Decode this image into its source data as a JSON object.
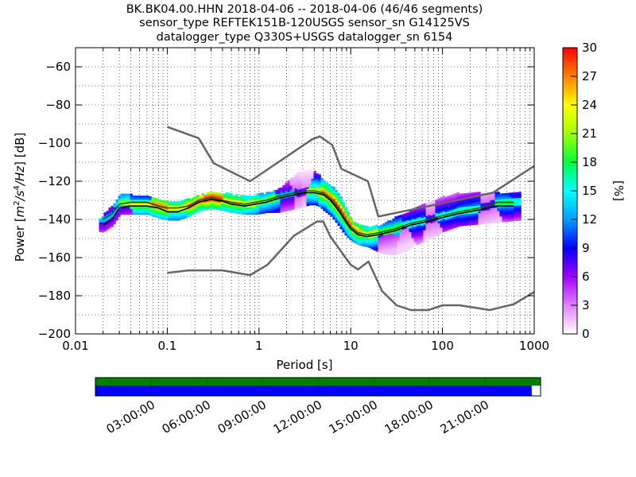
{
  "title_lines": [
    "BK.BK04.00.HHN   2018-04-06 -- 2018-04-06  (46/46 segments)",
    "sensor_type REFTEK151B-120USGS sensor_sn G14125VS",
    "datalogger_type Q330S+USGS datalogger_sn 6154"
  ],
  "chart_data": {
    "type": "heatmap",
    "xlabel": "Period [s]",
    "ylabel": "Power [m²/s⁴/Hz] [dB]",
    "x_scale": "log",
    "xlim": [
      0.01,
      1000
    ],
    "ylim": [
      -200,
      -50
    ],
    "x_ticks": [
      0.01,
      0.1,
      1,
      10,
      100,
      1000
    ],
    "x_tick_labels": [
      "0.01",
      "0.1",
      "1",
      "10",
      "100",
      "1000"
    ],
    "y_ticks": [
      -200,
      -180,
      -160,
      -140,
      -120,
      -100,
      -80,
      -60
    ],
    "y_tick_labels": [
      "−200",
      "−180",
      "−160",
      "−140",
      "−120",
      "−100",
      "−80",
      "−60"
    ],
    "grid": true,
    "colorbar": {
      "label": "[%]",
      "range": [
        0,
        30
      ],
      "ticks": [
        0,
        3,
        6,
        9,
        12,
        15,
        18,
        21,
        24,
        27,
        30
      ],
      "colormap": [
        "#ffffff",
        "#e080ff",
        "#a000ff",
        "#0000ff",
        "#00a0ff",
        "#00ffff",
        "#00ff40",
        "#a0ff00",
        "#ffff00",
        "#ff8000",
        "#ff0000"
      ]
    },
    "noise_model_high": {
      "x": [
        0.1,
        0.22,
        0.32,
        0.8,
        3.8,
        4.6,
        6.3,
        7.9,
        15.4,
        20,
        354.8,
        1000
      ],
      "y": [
        -91.5,
        -97.4,
        -110.5,
        -120,
        -98,
        -96.5,
        -101,
        -113.5,
        -120,
        -138.5,
        -126,
        -112
      ]
    },
    "noise_model_low": {
      "x": [
        0.1,
        0.17,
        0.4,
        0.8,
        1.24,
        2.4,
        4.3,
        5,
        6,
        10,
        12,
        15.6,
        21.9,
        31.6,
        45,
        70,
        101,
        154,
        328,
        600,
        1000
      ],
      "y": [
        -168,
        -166.7,
        -166.7,
        -169.2,
        -163.7,
        -148.6,
        -141.1,
        -141.1,
        -149,
        -163.8,
        -166.2,
        -162.1,
        -177.5,
        -185,
        -187.5,
        -187.5,
        -185,
        -185,
        -187.5,
        -184.4,
        -178
      ]
    },
    "mean_psd": {
      "x": [
        0.02,
        0.025,
        0.03,
        0.04,
        0.06,
        0.08,
        0.1,
        0.13,
        0.17,
        0.22,
        0.3,
        0.4,
        0.5,
        0.7,
        0.9,
        1.2,
        1.6,
        2,
        2.5,
        3.2,
        4,
        5,
        6,
        7,
        8,
        9,
        10,
        12,
        15,
        20,
        30,
        45,
        70,
        100,
        150,
        250,
        400,
        600
      ],
      "y": [
        -143,
        -140,
        -134,
        -133,
        -133,
        -134,
        -136,
        -136,
        -134,
        -131,
        -129.5,
        -130.5,
        -132,
        -133,
        -132,
        -131,
        -129,
        -128,
        -127,
        -126,
        -126,
        -127,
        -130,
        -134,
        -138,
        -142,
        -145,
        -148,
        -149,
        -148,
        -146,
        -143,
        -141,
        -139,
        -137,
        -135,
        -133,
        -133
      ]
    },
    "mode_psd": {
      "x": [
        0.02,
        0.025,
        0.03,
        0.04,
        0.06,
        0.08,
        0.1,
        0.13,
        0.17,
        0.22,
        0.3,
        0.4,
        0.5,
        0.7,
        0.9,
        1.2,
        1.6,
        2,
        2.5,
        3.2,
        4,
        5,
        6,
        7,
        8,
        9,
        10,
        12,
        15,
        20,
        30,
        45,
        70,
        100,
        150,
        250,
        400,
        600
      ],
      "y": [
        -140,
        -137,
        -132,
        -131,
        -131,
        -133,
        -134,
        -134,
        -133,
        -130,
        -128.5,
        -130,
        -131,
        -132,
        -131,
        -130,
        -128,
        -127,
        -126,
        -125,
        -125,
        -126,
        -129,
        -133,
        -137,
        -141,
        -144,
        -147,
        -148,
        -147,
        -145,
        -142,
        -140,
        -138,
        -136,
        -134,
        -131,
        -131
      ]
    },
    "psd_histogram_band": {
      "x": [
        0.018,
        0.02,
        0.025,
        0.03,
        0.04,
        0.06,
        0.08,
        0.1,
        0.13,
        0.17,
        0.22,
        0.3,
        0.4,
        0.5,
        0.7,
        0.9,
        1.2,
        1.6,
        2,
        2.5,
        3,
        3.5,
        4,
        4.5,
        5,
        6,
        7,
        8,
        9,
        10,
        12,
        15,
        20,
        25,
        30,
        40,
        50,
        70,
        100,
        150,
        250,
        400,
        700
      ],
      "lower": [
        -146,
        -146,
        -143,
        -137,
        -137,
        -137,
        -139,
        -140,
        -140,
        -138,
        -135,
        -134,
        -135,
        -136,
        -137,
        -137,
        -136,
        -136,
        -135,
        -134,
        -133,
        -132,
        -132,
        -133,
        -135,
        -138,
        -142,
        -146,
        -149,
        -151,
        -153,
        -154,
        -157,
        -158,
        -158,
        -156,
        -153,
        -150,
        -146,
        -143,
        -142,
        -141,
        -140
      ],
      "upper": [
        -140,
        -137,
        -132,
        -127,
        -127,
        -128,
        -129,
        -131,
        -131,
        -129,
        -127,
        -126,
        -126,
        -127,
        -128,
        -127,
        -126,
        -124,
        -120,
        -116,
        -114,
        -114,
        -115,
        -117,
        -120,
        -122,
        -126,
        -130,
        -135,
        -140,
        -143,
        -144,
        -143,
        -141,
        -139,
        -136,
        -134,
        -131,
        -128,
        -126,
        -126,
        -126,
        -126
      ]
    },
    "histogram_cells": [
      {
        "x": 0.03,
        "y": -135,
        "pct": 9
      },
      {
        "x": 0.03,
        "y": -131,
        "pct": 18
      },
      {
        "x": 0.05,
        "y": -133,
        "pct": 22
      },
      {
        "x": 0.05,
        "y": -128,
        "pct": 13
      },
      {
        "x": 0.08,
        "y": -134,
        "pct": 24
      },
      {
        "x": 0.12,
        "y": -134,
        "pct": 20
      },
      {
        "x": 0.2,
        "y": -131,
        "pct": 24
      },
      {
        "x": 0.3,
        "y": -129,
        "pct": 26
      },
      {
        "x": 0.5,
        "y": -131,
        "pct": 22
      },
      {
        "x": 0.8,
        "y": -131,
        "pct": 20
      },
      {
        "x": 1.2,
        "y": -130,
        "pct": 17
      },
      {
        "x": 2,
        "y": -127,
        "pct": 9
      },
      {
        "x": 2.5,
        "y": -120,
        "pct": 4
      },
      {
        "x": 3,
        "y": -118,
        "pct": 3
      },
      {
        "x": 4,
        "y": -125,
        "pct": 19
      },
      {
        "x": 5,
        "y": -126,
        "pct": 24
      },
      {
        "x": 7,
        "y": -133,
        "pct": 26
      },
      {
        "x": 9,
        "y": -140,
        "pct": 25
      },
      {
        "x": 11,
        "y": -146,
        "pct": 23
      },
      {
        "x": 15,
        "y": -148,
        "pct": 20
      },
      {
        "x": 25,
        "y": -150,
        "pct": 6
      },
      {
        "x": 25,
        "y": -146,
        "pct": 16
      },
      {
        "x": 40,
        "y": -154,
        "pct": 4
      },
      {
        "x": 50,
        "y": -143,
        "pct": 12
      },
      {
        "x": 80,
        "y": -146,
        "pct": 4
      },
      {
        "x": 100,
        "y": -138,
        "pct": 12
      },
      {
        "x": 200,
        "y": -134,
        "pct": 13
      },
      {
        "x": 300,
        "y": -138,
        "pct": 4
      },
      {
        "x": 500,
        "y": -131,
        "pct": 14
      },
      {
        "x": 600,
        "y": -128,
        "pct": 12
      }
    ]
  },
  "coverage": {
    "time_tick_labels": [
      "03:00:00",
      "06:00:00",
      "09:00:00",
      "12:00:00",
      "15:00:00",
      "18:00:00",
      "21:00:00"
    ],
    "time_tick_hours": [
      3,
      6,
      9,
      12,
      15,
      18,
      21
    ],
    "data_color": "#008000",
    "used_color": "#0000ff",
    "used_fraction": 0.98
  }
}
